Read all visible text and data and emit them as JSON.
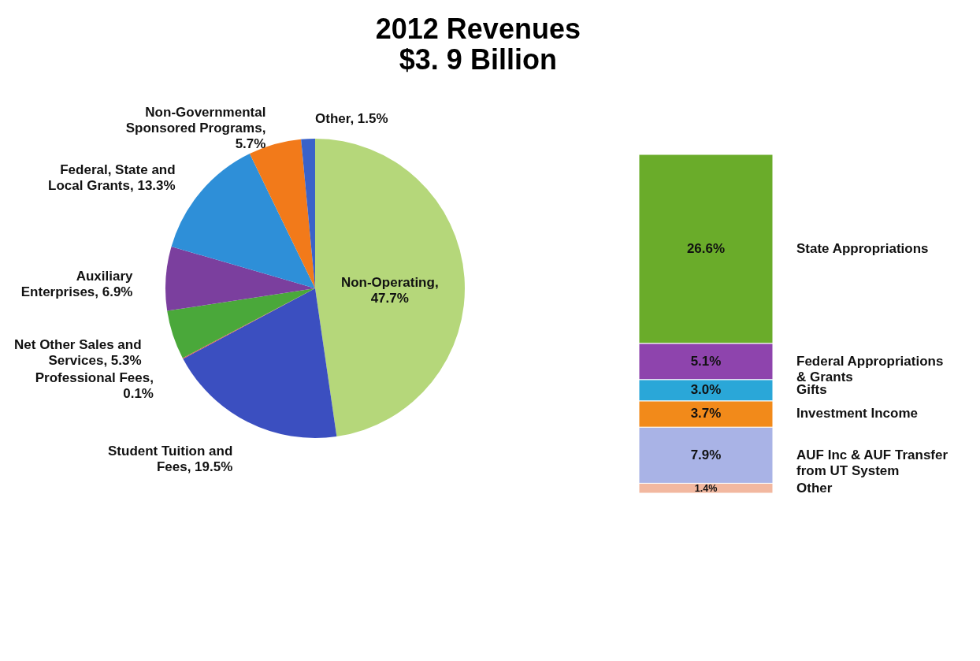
{
  "chart_data": [
    {
      "type": "pie",
      "title": "2012 Revenues",
      "subtitle": "$3. 9 Billion",
      "categories": [
        "Non-Operating, 47.7%",
        "Student Tuition and Fees, 19.5%",
        "Professional Fees, 0.1%",
        "Net Other Sales and Services, 5.3%",
        "Auxiliary Enterprises, 6.9%",
        "Federal, State and Local Grants, 13.3%",
        "Non-Governmental Sponsored Programs, 5.7%",
        "Other, 1.5%"
      ],
      "values": [
        47.7,
        19.5,
        0.1,
        5.3,
        6.9,
        13.3,
        5.7,
        1.5
      ],
      "colors": [
        "#b5d77a",
        "#3b4fc0",
        "#d9534f",
        "#4aa83a",
        "#7b3f9e",
        "#2e8fd8",
        "#f27a1a",
        "#3a62c9"
      ]
    },
    {
      "type": "bar",
      "stacked": true,
      "categories": [
        null
      ],
      "series": [
        {
          "name": "Other",
          "color": "#f2b8a0",
          "values": [
            1.4
          ],
          "value_labels": [
            "1.4%"
          ]
        },
        {
          "name": "AUF Inc & AUF Transfer from UT System",
          "color": "#a9b3e6",
          "values": [
            7.9
          ],
          "value_labels": [
            "7.9%"
          ]
        },
        {
          "name": "Investment Income",
          "color": "#f28a1a",
          "values": [
            3.7
          ],
          "value_labels": [
            "3.7%"
          ]
        },
        {
          "name": "Gifts",
          "color": "#2aa7d8",
          "values": [
            3.0
          ],
          "value_labels": [
            "3.0%"
          ]
        },
        {
          "name": "Federal Appropriations & Grants",
          "color": "#8e44ad",
          "values": [
            5.1
          ],
          "value_labels": [
            "5.1%"
          ]
        },
        {
          "name": "State Appropriations",
          "color": "#6aac2a",
          "values": [
            26.6
          ],
          "value_labels": [
            "26.6%"
          ]
        }
      ]
    }
  ]
}
